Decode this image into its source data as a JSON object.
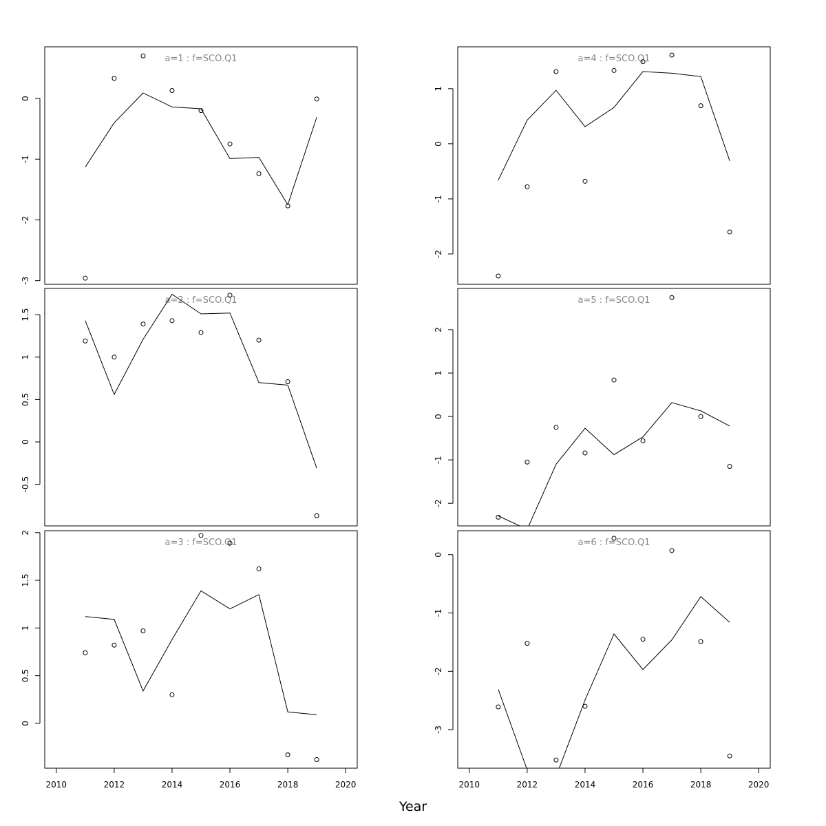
{
  "chart_data": {
    "type": "line",
    "xlabel": "Year",
    "x_ticks": [
      2010,
      2012,
      2014,
      2016,
      2018,
      2020
    ],
    "xlim": [
      2009.6,
      2020.4
    ],
    "panels": [
      {
        "title": "a=1  :  f=SCO.Q1",
        "ylim": [
          -3.06,
          0.85
        ],
        "y_ticks": [
          0,
          -1,
          -2,
          -3
        ],
        "fitted": {
          "x": [
            2011,
            2012,
            2013,
            2014,
            2015,
            2016,
            2017,
            2018,
            2019
          ],
          "y": [
            -1.13,
            -0.4,
            0.09,
            -0.14,
            -0.17,
            -0.99,
            -0.97,
            -1.75,
            -0.31
          ]
        },
        "observed": {
          "x": [
            2011,
            2012,
            2013,
            2014,
            2015,
            2016,
            2017,
            2018,
            2019
          ],
          "y": [
            -2.96,
            0.33,
            0.7,
            0.13,
            -0.2,
            -0.75,
            -1.24,
            -1.77,
            -0.01
          ]
        }
      },
      {
        "title": "a=2  :  f=SCO.Q1",
        "ylim": [
          -0.99,
          1.81
        ],
        "y_ticks": [
          1.5,
          1.0,
          0.5,
          0.0,
          -0.5
        ],
        "fitted": {
          "x": [
            2011,
            2012,
            2013,
            2014,
            2015,
            2016,
            2017,
            2018,
            2019
          ],
          "y": [
            1.43,
            0.56,
            1.21,
            1.74,
            1.51,
            1.52,
            0.7,
            0.67,
            -0.31
          ]
        },
        "observed": {
          "x": [
            2011,
            2012,
            2013,
            2014,
            2015,
            2016,
            2017,
            2018,
            2019
          ],
          "y": [
            1.19,
            1.0,
            1.39,
            1.43,
            1.29,
            1.73,
            1.2,
            0.71,
            -0.87
          ]
        }
      },
      {
        "title": "a=3  :  f=SCO.Q1",
        "ylim": [
          -0.47,
          2.02
        ],
        "y_ticks": [
          2.0,
          1.5,
          1.0,
          0.5,
          0.0
        ],
        "fitted": {
          "x": [
            2011,
            2012,
            2013,
            2014,
            2015,
            2016,
            2017,
            2018,
            2019
          ],
          "y": [
            1.12,
            1.09,
            0.34,
            0.88,
            1.39,
            1.2,
            1.35,
            0.12,
            0.09
          ]
        },
        "observed": {
          "x": [
            2011,
            2012,
            2013,
            2014,
            2015,
            2016,
            2017,
            2018,
            2019
          ],
          "y": [
            0.74,
            0.82,
            0.97,
            0.3,
            1.97,
            1.89,
            1.62,
            -0.33,
            -0.38
          ]
        }
      },
      {
        "title": "a=4  :  f=SCO.Q1",
        "ylim": [
          -2.55,
          1.76
        ],
        "y_ticks": [
          1,
          0,
          -1,
          -2
        ],
        "fitted": {
          "x": [
            2011,
            2012,
            2013,
            2014,
            2015,
            2016,
            2017,
            2018,
            2019
          ],
          "y": [
            -0.66,
            0.43,
            0.97,
            0.31,
            0.66,
            1.31,
            1.28,
            1.22,
            -0.31
          ]
        },
        "observed": {
          "x": [
            2011,
            2012,
            2013,
            2014,
            2015,
            2016,
            2017,
            2018,
            2019
          ],
          "y": [
            -2.4,
            -0.78,
            1.31,
            -0.68,
            1.33,
            1.49,
            1.61,
            0.69,
            -1.6
          ]
        }
      },
      {
        "title": "a=5  :  f=SCO.Q1",
        "ylim": [
          -2.52,
          2.95
        ],
        "y_ticks": [
          2,
          1,
          0,
          -1,
          -2
        ],
        "fitted": {
          "x": [
            2011,
            2012,
            2013,
            2014,
            2015,
            2016,
            2017,
            2018,
            2019
          ],
          "y": [
            -2.29,
            -2.6,
            -1.1,
            -0.27,
            -0.88,
            -0.47,
            0.32,
            0.13,
            -0.22
          ]
        },
        "observed": {
          "x": [
            2011,
            2012,
            2013,
            2014,
            2015,
            2016,
            2017,
            2018,
            2019
          ],
          "y": [
            -2.32,
            -1.05,
            -0.25,
            -0.84,
            0.84,
            -0.56,
            2.74,
            0.0,
            -1.15
          ]
        }
      },
      {
        "title": "a=6  :  f=SCO.Q1",
        "ylim": [
          -3.66,
          0.41
        ],
        "y_ticks": [
          0,
          -1,
          -2,
          -3
        ],
        "fitted": {
          "x": [
            2011,
            2012,
            2013,
            2014,
            2015,
            2016,
            2017,
            2018,
            2019
          ],
          "y": [
            -2.31,
            -3.69,
            -3.8,
            -2.49,
            -1.36,
            -1.97,
            -1.46,
            -0.72,
            -1.16
          ]
        },
        "observed": {
          "x": [
            2011,
            2012,
            2013,
            2014,
            2015,
            2016,
            2017,
            2018,
            2019
          ],
          "y": [
            -2.61,
            -1.52,
            -3.52,
            -2.6,
            0.28,
            -1.45,
            0.07,
            -1.49,
            -3.45
          ]
        }
      }
    ]
  }
}
